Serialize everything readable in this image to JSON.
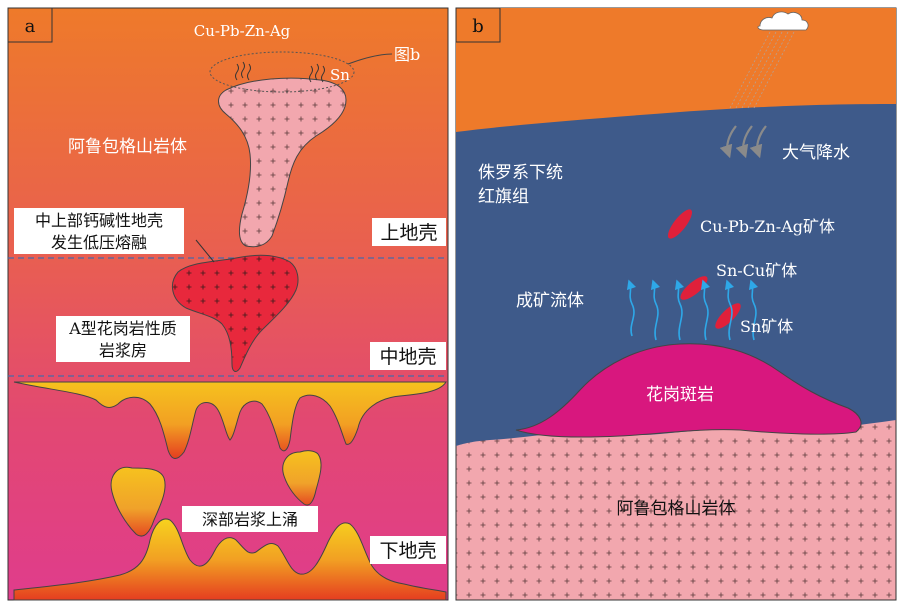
{
  "panel_a": {
    "label": "a",
    "top_text": "Cu-Pb-Zn-Ag",
    "sn_text": "Sn",
    "tu_b_label": "图b",
    "pluton_label": "阿鲁包格山岩体",
    "melting_line1": "中上部钙碱性地壳",
    "melting_line2": "发生低压熔融",
    "magma_line1": "A型花岗岩性质",
    "magma_line2": "岩浆房",
    "upper_crust": "上地壳",
    "middle_crust": "中地壳",
    "lower_crust": "下地壳",
    "upwelling": "深部岩浆上涌"
  },
  "panel_b": {
    "label": "b",
    "rain_label": "大气降水",
    "formation_line1": "侏罗系下统",
    "formation_line2": "红旗组",
    "ore1": "Cu-Pb-Zn-Ag矿体",
    "ore2": "Sn-Cu矿体",
    "ore3": "Sn矿体",
    "fluid_label": "成矿流体",
    "porphyry_label": "花岗斑岩",
    "pluton_label": "阿鲁包格山岩体"
  },
  "colors": {
    "orange": "#EE7A2A",
    "blue_formation": "#3E5A8A",
    "pink_pluton": "#F2A7AE",
    "magenta_porphyry": "#D8177E",
    "red_ore": "#E0203A",
    "magma_red": "#E8283C",
    "fluid_arrow": "#2EA8E8"
  }
}
